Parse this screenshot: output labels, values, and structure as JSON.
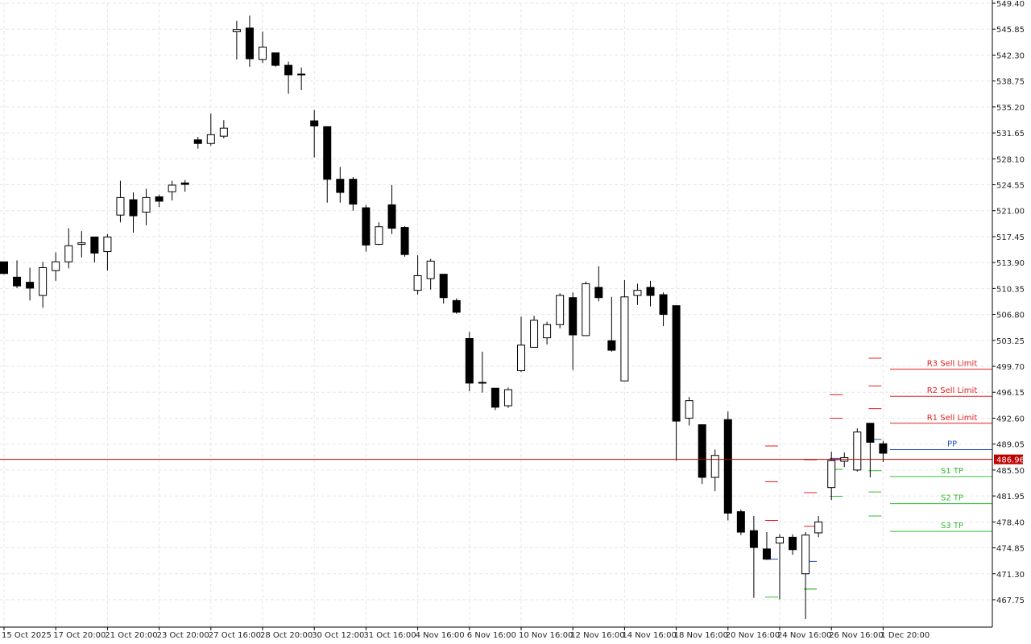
{
  "chart_data": {
    "type": "candlestick",
    "colors": {
      "background": "#ffffff",
      "grid": "#e6e6e6",
      "axis": "#000000",
      "candle_bull_fill": "#ffffff",
      "candle_bear_fill": "#000000",
      "candle_outline": "#000000",
      "current_price_line": "#c00000",
      "resistance": "#e02020",
      "support": "#33bb33",
      "pivot": "#1f4fbf"
    },
    "ylim": [
      464.0,
      549.4
    ],
    "y_ticks": [
      "549.40",
      "545.85",
      "542.30",
      "538.75",
      "535.20",
      "531.65",
      "528.10",
      "524.55",
      "521.00",
      "517.45",
      "513.90",
      "510.35",
      "506.80",
      "503.25",
      "499.70",
      "496.15",
      "492.60",
      "489.05",
      "485.50",
      "481.95",
      "478.40",
      "474.85",
      "471.30",
      "467.75"
    ],
    "x_labels": [
      {
        "index": 0,
        "text": "15 Oct 2025"
      },
      {
        "index": 4,
        "text": "17 Oct 20:00"
      },
      {
        "index": 8,
        "text": "21 Oct 20:00"
      },
      {
        "index": 12,
        "text": "23 Oct 20:00"
      },
      {
        "index": 16,
        "text": "27 Oct 16:00"
      },
      {
        "index": 20,
        "text": "28 Oct 20:00"
      },
      {
        "index": 24,
        "text": "30 Oct 12:00"
      },
      {
        "index": 28,
        "text": "31 Oct 16:00"
      },
      {
        "index": 32,
        "text": "4 Nov 16:00"
      },
      {
        "index": 36,
        "text": "6 Nov 16:00"
      },
      {
        "index": 40,
        "text": "10 Nov 16:00"
      },
      {
        "index": 44,
        "text": "12 Nov 16:00"
      },
      {
        "index": 48,
        "text": "14 Nov 16:00"
      },
      {
        "index": 52,
        "text": "18 Nov 16:00"
      },
      {
        "index": 56,
        "text": "20 Nov 16:00"
      },
      {
        "index": 60,
        "text": "24 Nov 16:00"
      },
      {
        "index": 64,
        "text": "26 Nov 16:00"
      },
      {
        "index": 68,
        "text": "1 Dec 20:00"
      }
    ],
    "candles": [
      {
        "o": 514.0,
        "h": 514.0,
        "l": 512.3,
        "c": 512.4
      },
      {
        "o": 511.9,
        "h": 514.2,
        "l": 510.4,
        "c": 510.7
      },
      {
        "o": 511.2,
        "h": 513.2,
        "l": 508.7,
        "c": 510.4
      },
      {
        "o": 509.4,
        "h": 514.0,
        "l": 507.7,
        "c": 513.2
      },
      {
        "o": 512.8,
        "h": 515.3,
        "l": 511.4,
        "c": 514.0
      },
      {
        "o": 514.0,
        "h": 518.6,
        "l": 513.1,
        "c": 516.2
      },
      {
        "o": 516.4,
        "h": 518.2,
        "l": 514.6,
        "c": 516.6
      },
      {
        "o": 517.4,
        "h": 517.4,
        "l": 513.9,
        "c": 515.2
      },
      {
        "o": 515.4,
        "h": 517.8,
        "l": 512.8,
        "c": 517.4
      },
      {
        "o": 520.4,
        "h": 525.1,
        "l": 519.4,
        "c": 522.8
      },
      {
        "o": 522.5,
        "h": 523.5,
        "l": 518.0,
        "c": 520.3
      },
      {
        "o": 520.8,
        "h": 524.0,
        "l": 519.0,
        "c": 522.8
      },
      {
        "o": 522.9,
        "h": 523.2,
        "l": 521.5,
        "c": 522.3
      },
      {
        "o": 523.6,
        "h": 525.1,
        "l": 522.4,
        "c": 524.5
      },
      {
        "o": 524.8,
        "h": 525.2,
        "l": 523.6,
        "c": 524.6
      },
      {
        "o": 530.7,
        "h": 531.1,
        "l": 529.5,
        "c": 530.2
      },
      {
        "o": 530.2,
        "h": 534.3,
        "l": 529.9,
        "c": 531.4
      },
      {
        "o": 531.2,
        "h": 533.4,
        "l": 530.9,
        "c": 532.3
      },
      {
        "o": 545.5,
        "h": 547.0,
        "l": 541.7,
        "c": 545.8
      },
      {
        "o": 546.0,
        "h": 547.7,
        "l": 540.7,
        "c": 541.8
      },
      {
        "o": 541.7,
        "h": 545.5,
        "l": 541.2,
        "c": 543.4
      },
      {
        "o": 542.6,
        "h": 542.6,
        "l": 540.7,
        "c": 540.9
      },
      {
        "o": 540.9,
        "h": 541.4,
        "l": 537.0,
        "c": 539.6
      },
      {
        "o": 539.6,
        "h": 540.6,
        "l": 537.5,
        "c": 539.7
      },
      {
        "o": 533.3,
        "h": 534.8,
        "l": 528.3,
        "c": 532.6
      },
      {
        "o": 532.5,
        "h": 532.5,
        "l": 522.1,
        "c": 525.3
      },
      {
        "o": 525.3,
        "h": 527.0,
        "l": 522.1,
        "c": 523.5
      },
      {
        "o": 525.3,
        "h": 525.6,
        "l": 521.0,
        "c": 521.9
      },
      {
        "o": 521.4,
        "h": 521.8,
        "l": 515.4,
        "c": 516.3
      },
      {
        "o": 516.4,
        "h": 519.4,
        "l": 516.3,
        "c": 518.8
      },
      {
        "o": 521.8,
        "h": 524.5,
        "l": 517.8,
        "c": 518.6
      },
      {
        "o": 518.7,
        "h": 518.9,
        "l": 514.7,
        "c": 515.0
      },
      {
        "o": 510.1,
        "h": 514.9,
        "l": 509.5,
        "c": 512.1
      },
      {
        "o": 511.7,
        "h": 514.4,
        "l": 510.2,
        "c": 514.1
      },
      {
        "o": 512.3,
        "h": 512.3,
        "l": 508.3,
        "c": 509.1
      },
      {
        "o": 508.7,
        "h": 509.0,
        "l": 506.9,
        "c": 507.1
      },
      {
        "o": 503.5,
        "h": 504.4,
        "l": 496.3,
        "c": 497.4
      },
      {
        "o": 497.5,
        "h": 501.7,
        "l": 496.1,
        "c": 497.5
      },
      {
        "o": 496.7,
        "h": 496.7,
        "l": 493.7,
        "c": 494.1
      },
      {
        "o": 494.3,
        "h": 496.8,
        "l": 494.0,
        "c": 496.5
      },
      {
        "o": 499.1,
        "h": 506.5,
        "l": 498.9,
        "c": 502.6
      },
      {
        "o": 502.3,
        "h": 506.6,
        "l": 502.3,
        "c": 506.0
      },
      {
        "o": 503.6,
        "h": 505.8,
        "l": 502.7,
        "c": 505.4
      },
      {
        "o": 505.4,
        "h": 509.7,
        "l": 504.9,
        "c": 509.4
      },
      {
        "o": 509.1,
        "h": 509.8,
        "l": 499.2,
        "c": 504.0
      },
      {
        "o": 503.9,
        "h": 511.3,
        "l": 503.9,
        "c": 511.0
      },
      {
        "o": 510.5,
        "h": 513.4,
        "l": 508.6,
        "c": 509.1
      },
      {
        "o": 503.2,
        "h": 509.2,
        "l": 501.7,
        "c": 501.9
      },
      {
        "o": 497.7,
        "h": 511.5,
        "l": 497.7,
        "c": 509.2
      },
      {
        "o": 509.4,
        "h": 511.0,
        "l": 508.1,
        "c": 510.1
      },
      {
        "o": 510.5,
        "h": 511.4,
        "l": 507.9,
        "c": 509.4
      },
      {
        "o": 509.5,
        "h": 509.8,
        "l": 505.2,
        "c": 506.8
      },
      {
        "o": 508.0,
        "h": 508.0,
        "l": 486.8,
        "c": 492.2
      },
      {
        "o": 492.6,
        "h": 495.5,
        "l": 491.6,
        "c": 495.0
      },
      {
        "o": 491.7,
        "h": 491.7,
        "l": 483.6,
        "c": 484.5
      },
      {
        "o": 484.5,
        "h": 488.3,
        "l": 482.6,
        "c": 487.5
      },
      {
        "o": 492.4,
        "h": 493.5,
        "l": 478.6,
        "c": 479.6
      },
      {
        "o": 479.8,
        "h": 480.1,
        "l": 476.6,
        "c": 477.0
      },
      {
        "o": 477.2,
        "h": 479.2,
        "l": 468.0,
        "c": 474.9
      },
      {
        "o": 474.7,
        "h": 477.0,
        "l": 473.2,
        "c": 473.3
      },
      {
        "o": 475.5,
        "h": 476.7,
        "l": 467.8,
        "c": 476.3
      },
      {
        "o": 476.3,
        "h": 476.7,
        "l": 473.9,
        "c": 474.6
      },
      {
        "o": 471.3,
        "h": 477.0,
        "l": 465.1,
        "c": 476.6
      },
      {
        "o": 476.9,
        "h": 479.2,
        "l": 476.3,
        "c": 478.4
      },
      {
        "o": 483.1,
        "h": 488.0,
        "l": 481.4,
        "c": 486.8
      },
      {
        "o": 486.7,
        "h": 487.9,
        "l": 485.9,
        "c": 487.2
      },
      {
        "o": 485.5,
        "h": 491.2,
        "l": 485.3,
        "c": 490.7
      },
      {
        "o": 491.9,
        "h": 491.9,
        "l": 484.5,
        "c": 489.3
      },
      {
        "o": 489.1,
        "h": 489.5,
        "l": 486.6,
        "c": 487.8
      }
    ],
    "current_price": 486.96,
    "current_price_label": "486.96",
    "pivot_lines": [
      {
        "name": "R3 Sell Limit",
        "value": 499.3,
        "kind": "resistance"
      },
      {
        "name": "R2 Sell Limit",
        "value": 495.6,
        "kind": "resistance"
      },
      {
        "name": "R1 Sell Limit",
        "value": 491.9,
        "kind": "resistance"
      },
      {
        "name": "PP",
        "value": 488.3,
        "kind": "pivot"
      },
      {
        "name": "S1 TP",
        "value": 484.6,
        "kind": "support"
      },
      {
        "name": "S2 TP",
        "value": 480.9,
        "kind": "support"
      },
      {
        "name": "S3 TP",
        "value": 477.1,
        "kind": "support"
      }
    ],
    "pivot_history": [
      {
        "index": 59,
        "r3": 488.8,
        "r2": 483.9,
        "r1": 478.6,
        "pp": 473.3,
        "s1": 468.1
      },
      {
        "index": 62,
        "r3": 486.9,
        "r2": 482.4,
        "r1": 477.8,
        "pp": 473.0,
        "s1": 469.2,
        "s2": 469.2
      },
      {
        "index": 64,
        "r3": 495.8,
        "r2": 492.6,
        "r1": 486.9,
        "pp": 487.1,
        "s1": 485.6,
        "s2": 481.9
      },
      {
        "index": 67,
        "r3": 500.8,
        "r2": 497.0,
        "r1": 493.9,
        "pp": 489.7,
        "s1": 485.4,
        "s2": 482.5,
        "s3": 479.2
      }
    ]
  }
}
